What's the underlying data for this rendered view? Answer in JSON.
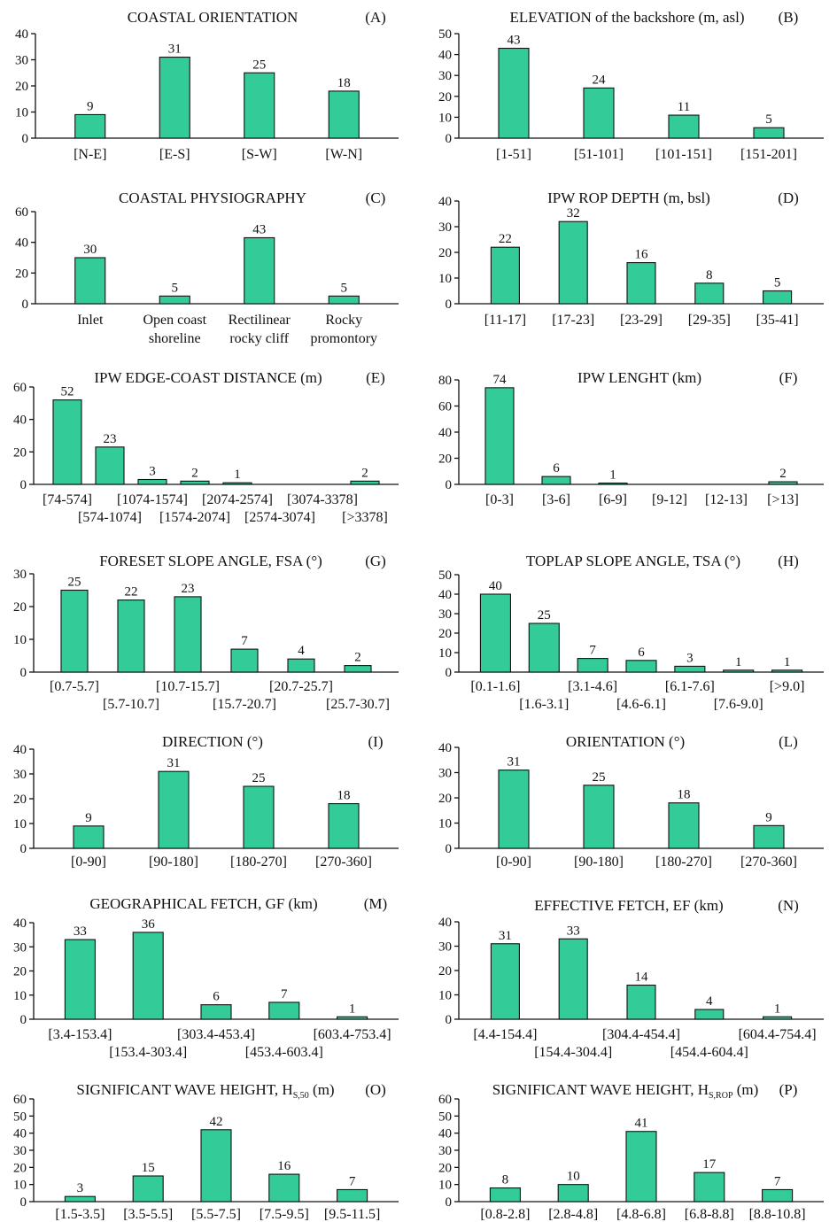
{
  "colors": {
    "bar": "#33cc99",
    "outline": "#111111",
    "background": "#ffffff"
  },
  "chart_data": [
    {
      "id": "A",
      "type": "bar",
      "title": "COASTAL ORIENTATION",
      "letter": "(A)",
      "ylim": [
        0,
        40
      ],
      "yticks": [
        0,
        10,
        20,
        30,
        40
      ],
      "categories": [
        "[N-E]",
        "[E-S]",
        "[S-W]",
        "[W-N]"
      ],
      "values": [
        9,
        31,
        25,
        18
      ],
      "labels": [
        "9",
        "31",
        "25",
        "18"
      ]
    },
    {
      "id": "B",
      "type": "bar",
      "title": "ELEVATION of the backshore  (m, asl)",
      "letter": "(B)",
      "ylim": [
        0,
        50
      ],
      "yticks": [
        0,
        10,
        20,
        30,
        40,
        50
      ],
      "categories": [
        "[1-51]",
        "[51-101]",
        "[101-151]",
        "[151-201]"
      ],
      "values": [
        43,
        24,
        11,
        5
      ],
      "labels": [
        "43",
        "24",
        "11",
        "5"
      ]
    },
    {
      "id": "C",
      "type": "bar",
      "title": "COASTAL PHYSIOGRAPHY",
      "letter": "(C)",
      "ylim": [
        0,
        60
      ],
      "yticks": [
        0,
        20,
        40,
        60
      ],
      "categories": [
        "Inlet",
        "Open coast|shoreline",
        "Rectilinear|rocky cliff",
        "Rocky|promontory"
      ],
      "values": [
        30,
        5,
        43,
        5
      ],
      "labels": [
        "30",
        "5",
        "43",
        "5"
      ]
    },
    {
      "id": "D",
      "type": "bar",
      "title": "IPW ROP DEPTH (m, bsl)",
      "letter": "(D)",
      "ylim": [
        0,
        40
      ],
      "yticks": [
        0,
        10,
        20,
        30,
        40
      ],
      "categories": [
        "[11-17]",
        "[17-23]",
        "[23-29]",
        "[29-35]",
        "[35-41]"
      ],
      "values": [
        22,
        32,
        16,
        8,
        5
      ],
      "labels": [
        "22",
        "32",
        "16",
        "8",
        "5"
      ]
    },
    {
      "id": "E",
      "type": "bar",
      "title": "IPW EDGE-COAST DISTANCE (m)",
      "letter": "(E)",
      "ylim": [
        0,
        60
      ],
      "yticks": [
        0,
        20,
        40,
        60
      ],
      "categories": [
        "[74-574]",
        "[574-1074]",
        "[1074-1574]",
        "[1574-2074]",
        "[2074-2574]",
        "[2574-3074]",
        "[3074-3378]",
        "[>3378]"
      ],
      "values": [
        52,
        23,
        3,
        2,
        1,
        0,
        0,
        2
      ],
      "labels": [
        "52",
        "23",
        "3",
        "2",
        "1",
        "",
        "",
        "2"
      ]
    },
    {
      "id": "F",
      "type": "bar",
      "title": "IPW LENGHT (km)",
      "letter": "(F)",
      "ylim": [
        0,
        80
      ],
      "yticks": [
        0,
        20,
        40,
        60,
        80
      ],
      "categories": [
        "[0-3]",
        "[3-6]",
        "[6-9]",
        "[9-12]",
        "[12-13]",
        "[>13]"
      ],
      "values": [
        74,
        6,
        1,
        0,
        0,
        2
      ],
      "labels": [
        "74",
        "6",
        "1",
        "",
        "",
        "2"
      ]
    },
    {
      "id": "G",
      "type": "bar",
      "title": "FORESET SLOPE ANGLE, FSA (°)",
      "letter": "(G)",
      "ylim": [
        0,
        30
      ],
      "yticks": [
        0,
        10,
        20,
        30
      ],
      "categories": [
        "[0.7-5.7]",
        "[5.7-10.7]",
        "[10.7-15.7]",
        "[15.7-20.7]",
        "[20.7-25.7]",
        "[25.7-30.7]"
      ],
      "values": [
        25,
        22,
        23,
        7,
        4,
        2
      ],
      "labels": [
        "25",
        "22",
        "23",
        "7",
        "4",
        "2"
      ]
    },
    {
      "id": "H",
      "type": "bar",
      "title": "TOPLAP SLOPE ANGLE, TSA (°)",
      "letter": "(H)",
      "ylim": [
        0,
        50
      ],
      "yticks": [
        0,
        10,
        20,
        30,
        40,
        50
      ],
      "categories": [
        "[0.1-1.6]",
        "[1.6-3.1]",
        "[3.1-4.6]",
        "[4.6-6.1]",
        "[6.1-7.6]",
        "[7.6-9.0]",
        "[>9.0]"
      ],
      "values": [
        40,
        25,
        7,
        6,
        3,
        1,
        1
      ],
      "labels": [
        "40",
        "25",
        "7",
        "6",
        "3",
        "1",
        "1"
      ]
    },
    {
      "id": "I",
      "type": "bar",
      "title": "DIRECTION  (°)",
      "letter": "(I)",
      "ylim": [
        0,
        40
      ],
      "yticks": [
        0,
        10,
        20,
        30,
        40
      ],
      "categories": [
        "[0-90]",
        "[90-180]",
        "[180-270]",
        "[270-360]"
      ],
      "values": [
        9,
        31,
        25,
        18
      ],
      "labels": [
        "9",
        "31",
        "25",
        "18"
      ]
    },
    {
      "id": "L",
      "type": "bar",
      "title": "ORIENTATION  (°)",
      "letter": "(L)",
      "ylim": [
        0,
        40
      ],
      "yticks": [
        0,
        10,
        20,
        30,
        40
      ],
      "categories": [
        "[0-90]",
        "[90-180]",
        "[180-270]",
        "[270-360]"
      ],
      "values": [
        31,
        25,
        18,
        9
      ],
      "labels": [
        "31",
        "25",
        "18",
        "9"
      ]
    },
    {
      "id": "M",
      "type": "bar",
      "title": "GEOGRAPHICAL FETCH, GF (km)",
      "letter": "(M)",
      "ylim": [
        0,
        40
      ],
      "yticks": [
        0,
        10,
        20,
        30,
        40
      ],
      "categories": [
        "[3.4-153.4]",
        "[153.4-303.4]",
        "[303.4-453.4]",
        "[453.4-603.4]",
        "[603.4-753.4]"
      ],
      "values": [
        33,
        36,
        6,
        7,
        1
      ],
      "labels": [
        "33",
        "36",
        "6",
        "7",
        "1"
      ]
    },
    {
      "id": "N",
      "type": "bar",
      "title": "EFFECTIVE FETCH, EF (km)",
      "letter": "(N)",
      "ylim": [
        0,
        40
      ],
      "yticks": [
        0,
        10,
        20,
        30,
        40
      ],
      "categories": [
        "[4.4-154.4]",
        "[154.4-304.4]",
        "[304.4-454.4]",
        "[454.4-604.4]",
        "[604.4-754.4]"
      ],
      "values": [
        31,
        33,
        14,
        4,
        1
      ],
      "labels": [
        "31",
        "33",
        "14",
        "4",
        "1"
      ]
    },
    {
      "id": "O",
      "type": "bar",
      "title": "SIGNIFICANT WAVE HEIGHT, H",
      "title_sub": "S,50",
      "title_tail": " (m)",
      "letter": "(O)",
      "ylim": [
        0,
        60
      ],
      "yticks": [
        0,
        10,
        20,
        30,
        40,
        50,
        60
      ],
      "categories": [
        "[1.5-3.5]",
        "[3.5-5.5]",
        "[5.5-7.5]",
        "[7.5-9.5]",
        "[9.5-11.5]"
      ],
      "values": [
        3,
        15,
        42,
        16,
        7
      ],
      "labels": [
        "3",
        "15",
        "42",
        "16",
        "7"
      ]
    },
    {
      "id": "P",
      "type": "bar",
      "title": "SIGNIFICANT WAVE HEIGHT, H",
      "title_sub": "S,ROP",
      "title_tail": " (m)",
      "letter": "(P)",
      "ylim": [
        0,
        60
      ],
      "yticks": [
        0,
        10,
        20,
        30,
        40,
        50,
        60
      ],
      "categories": [
        "[0.8-2.8]",
        "[2.8-4.8]",
        "[4.8-6.8]",
        "[6.8-8.8]",
        "[8.8-10.8]"
      ],
      "values": [
        8,
        10,
        41,
        17,
        7
      ],
      "labels": [
        "8",
        "10",
        "41",
        "17",
        "7"
      ]
    }
  ]
}
